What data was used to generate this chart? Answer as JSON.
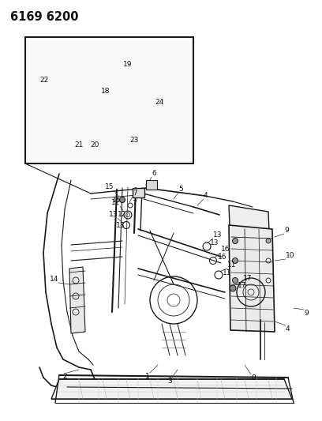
{
  "title": "6169 6200",
  "bg_color": "#ffffff",
  "line_color": "#1a1a1a",
  "label_color": "#111111",
  "title_fontsize": 10.5,
  "label_fontsize": 6.5,
  "figsize": [
    4.08,
    5.33
  ],
  "dpi": 100
}
